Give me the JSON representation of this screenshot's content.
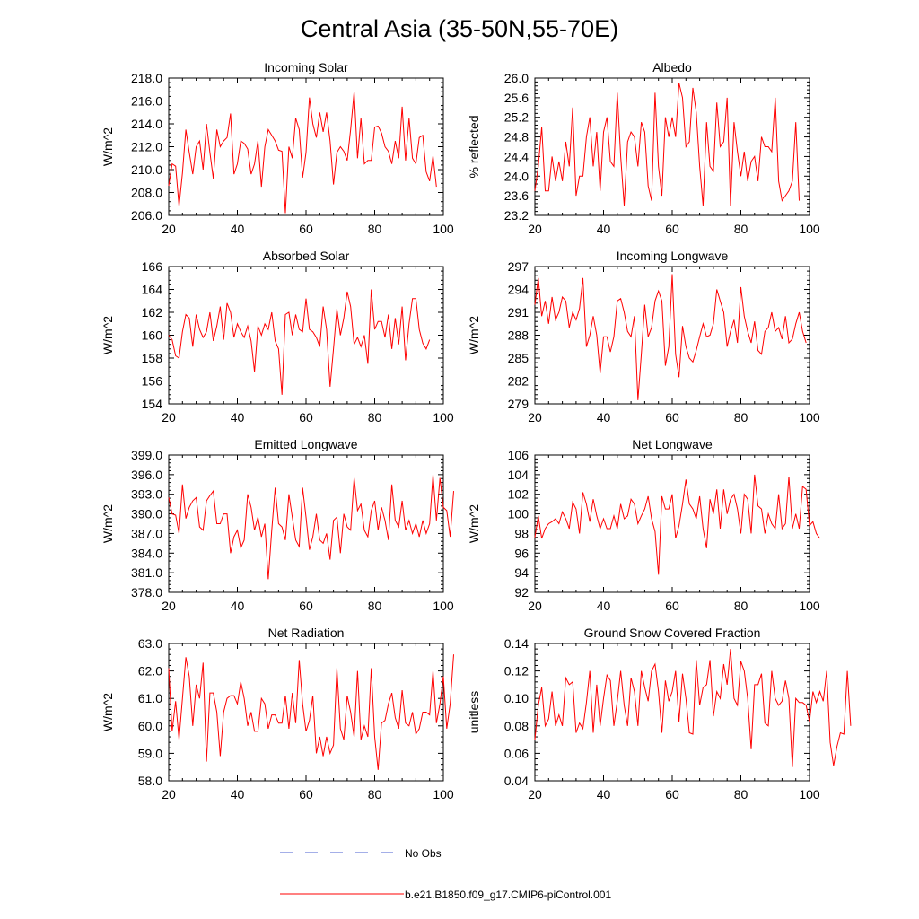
{
  "figure_title": "Central Asia (35-50N,55-70E)",
  "colors": {
    "model_line": "#ff0000",
    "obs_line": "#4a5fd0",
    "axis": "#000000"
  },
  "legend": {
    "obs_label": "No Obs",
    "model_label": "b.e21.B1850.f09_g17.CMIP6-piControl.001"
  },
  "chart_data": [
    {
      "type": "line",
      "title": "Incoming Solar",
      "xlabel": "",
      "ylabel": "W/m^2",
      "xlim": [
        20,
        100
      ],
      "ylim": [
        206.0,
        218.0
      ],
      "xticks": [
        "20",
        "40",
        "60",
        "80",
        "100"
      ],
      "yticks": [
        "206.0",
        "208.0",
        "210.0",
        "212.0",
        "214.0",
        "216.0",
        "218.0"
      ],
      "series": [
        {
          "name": "b.e21.B1850.f09_g17.CMIP6-piControl.001",
          "x0": 20,
          "values": [
            208.6,
            210.5,
            210.3,
            206.8,
            209.7,
            213.5,
            211.5,
            209.6,
            212.0,
            212.5,
            210.0,
            214.0,
            211.5,
            209.2,
            213.5,
            212.0,
            212.5,
            212.8,
            214.9,
            209.6,
            210.5,
            212.5,
            212.3,
            211.8,
            209.6,
            210.5,
            212.5,
            208.5,
            212.0,
            213.5,
            213.0,
            212.5,
            211.7,
            211.6,
            206.2,
            212.0,
            211.0,
            214.5,
            213.5,
            209.3,
            211.5,
            216.3,
            214.0,
            212.8,
            215.0,
            213.3,
            215.0,
            212.5,
            208.7,
            211.5,
            212.0,
            211.6,
            210.8,
            213.5,
            216.8,
            211.0,
            214.5,
            210.5,
            210.8,
            210.8,
            213.7,
            213.8,
            213.2,
            212.0,
            211.6,
            210.5,
            212.5,
            211.0,
            215.5,
            210.8,
            214.5,
            211.0,
            210.5,
            212.8,
            213.0,
            209.8,
            209.0,
            211.2,
            208.5
          ]
        }
      ]
    },
    {
      "type": "line",
      "title": "Albedo",
      "xlabel": "",
      "ylabel": "% reflected",
      "xlim": [
        20,
        100
      ],
      "ylim": [
        23.2,
        26.0
      ],
      "xticks": [
        "20",
        "40",
        "60",
        "80",
        "100"
      ],
      "yticks": [
        "23.2",
        "23.6",
        "24.0",
        "24.4",
        "24.8",
        "25.2",
        "25.6",
        "26.0"
      ],
      "series": [
        {
          "name": "b.e21.B1850.f09_g17.CMIP6-piControl.001",
          "x0": 20,
          "values": [
            23.7,
            24.2,
            25.0,
            23.7,
            23.7,
            24.4,
            23.9,
            24.3,
            23.9,
            24.7,
            24.2,
            25.4,
            23.6,
            24.0,
            24.0,
            24.8,
            25.2,
            24.2,
            24.9,
            23.7,
            24.9,
            25.2,
            24.3,
            24.2,
            25.7,
            24.4,
            23.4,
            24.7,
            24.9,
            24.8,
            24.2,
            25.1,
            24.9,
            23.8,
            23.5,
            25.7,
            24.2,
            23.6,
            25.2,
            24.8,
            25.2,
            24.8,
            25.9,
            25.6,
            24.6,
            24.7,
            25.8,
            25.3,
            24.2,
            23.4,
            25.1,
            24.2,
            24.1,
            25.5,
            24.6,
            24.7,
            25.6,
            23.4,
            25.1,
            24.5,
            24.0,
            24.5,
            23.9,
            24.3,
            24.4,
            23.9,
            24.8,
            24.6,
            24.6,
            24.5,
            25.6,
            23.9,
            23.5,
            23.6,
            23.7,
            23.9,
            25.1,
            23.5
          ]
        }
      ]
    },
    {
      "type": "line",
      "title": "Absorbed Solar",
      "xlabel": "",
      "ylabel": "W/m^2",
      "xlim": [
        20,
        100
      ],
      "ylim": [
        154,
        166
      ],
      "xticks": [
        "20",
        "40",
        "60",
        "80",
        "100"
      ],
      "yticks": [
        "154",
        "156",
        "158",
        "160",
        "162",
        "164",
        "166"
      ],
      "series": [
        {
          "name": "b.e21.B1850.f09_g17.CMIP6-piControl.001",
          "x0": 20,
          "values": [
            160.0,
            159.6,
            158.2,
            158.0,
            160.3,
            161.8,
            161.5,
            159.0,
            161.8,
            160.5,
            159.8,
            160.3,
            162.0,
            159.5,
            160.8,
            162.5,
            159.6,
            162.8,
            162.0,
            159.8,
            161.0,
            160.3,
            159.8,
            160.8,
            159.5,
            156.8,
            160.8,
            160.0,
            161.0,
            160.5,
            162.0,
            159.5,
            158.8,
            154.8,
            161.8,
            162.0,
            160.0,
            161.8,
            160.5,
            160.3,
            163.2,
            160.5,
            160.3,
            159.8,
            159.0,
            162.5,
            160.5,
            155.5,
            158.8,
            162.3,
            160.0,
            161.5,
            163.8,
            162.5,
            159.2,
            159.8,
            159.0,
            160.0,
            157.5,
            164.0,
            160.5,
            161.2,
            161.2,
            159.8,
            161.8,
            158.8,
            161.5,
            159.2,
            162.5,
            157.8,
            161.0,
            163.2,
            163.2,
            160.5,
            159.3,
            158.8,
            159.6
          ]
        }
      ]
    },
    {
      "type": "line",
      "title": "Incoming Longwave",
      "xlabel": "",
      "ylabel": "W/m^2",
      "xlim": [
        20,
        100
      ],
      "ylim": [
        279,
        297
      ],
      "xticks": [
        "20",
        "40",
        "60",
        "80",
        "100"
      ],
      "yticks": [
        "279",
        "282",
        "285",
        "288",
        "291",
        "294",
        "297"
      ],
      "series": [
        {
          "name": "b.e21.B1850.f09_g17.CMIP6-piControl.001",
          "x0": 20,
          "values": [
            292.0,
            295.5,
            290.5,
            292.5,
            289.5,
            293.0,
            290.0,
            291.0,
            293.0,
            292.5,
            289.0,
            291.0,
            290.0,
            291.5,
            295.5,
            286.5,
            288.0,
            290.5,
            288.0,
            283.0,
            287.8,
            287.8,
            285.8,
            287.8,
            292.5,
            292.8,
            291.0,
            288.5,
            287.8,
            290.5,
            279.5,
            285.5,
            292.0,
            287.8,
            289.0,
            292.5,
            293.8,
            292.5,
            284.0,
            286.5,
            296.0,
            285.5,
            282.5,
            289.2,
            286.5,
            285.0,
            284.5,
            286.0,
            287.8,
            289.5,
            287.8,
            288.0,
            289.5,
            294.0,
            292.5,
            291.0,
            286.5,
            288.5,
            290.0,
            287.0,
            294.3,
            290.5,
            288.5,
            287.0,
            289.8,
            286.0,
            285.5,
            288.5,
            289.0,
            291.0,
            288.5,
            289.0,
            287.5,
            290.5,
            287.0,
            287.5,
            289.5,
            291.0,
            288.5,
            287.0
          ]
        }
      ]
    },
    {
      "type": "line",
      "title": "Emitted Longwave",
      "xlabel": "",
      "ylabel": "W/m^2",
      "xlim": [
        20,
        100
      ],
      "ylim": [
        378.0,
        399.0
      ],
      "xticks": [
        "20",
        "40",
        "60",
        "80",
        "100"
      ],
      "yticks": [
        "378.0",
        "381.0",
        "384.0",
        "387.0",
        "390.0",
        "393.0",
        "396.0",
        "399.0"
      ],
      "series": [
        {
          "name": "b.e21.B1850.f09_g17.CMIP6-piControl.001",
          "x0": 20,
          "values": [
            392.5,
            390.0,
            389.8,
            387.0,
            394.5,
            389.3,
            391.0,
            392.0,
            392.5,
            388.0,
            387.5,
            392.0,
            392.8,
            393.5,
            388.5,
            388.5,
            390.0,
            390.0,
            384.0,
            386.5,
            387.5,
            384.8,
            386.0,
            393.0,
            391.0,
            387.5,
            389.5,
            386.5,
            388.5,
            380.0,
            387.5,
            394.0,
            388.5,
            388.0,
            386.0,
            393.0,
            389.5,
            386.0,
            385.0,
            394.0,
            389.5,
            384.5,
            386.5,
            390.0,
            386.0,
            385.5,
            387.0,
            383.0,
            389.0,
            389.5,
            384.0,
            390.0,
            388.0,
            387.5,
            395.5,
            390.5,
            391.5,
            387.5,
            386.5,
            390.5,
            392.0,
            387.5,
            391.0,
            389.0,
            386.0,
            394.5,
            389.0,
            388.0,
            392.0,
            387.5,
            389.0,
            387.0,
            388.5,
            386.5,
            389.0,
            387.0,
            388.5,
            396.0,
            389.0,
            395.5,
            391.0,
            390.5,
            386.5,
            393.5
          ]
        }
      ]
    },
    {
      "type": "line",
      "title": "Net Longwave",
      "xlabel": "",
      "ylabel": "W/m^2",
      "xlim": [
        20,
        100
      ],
      "ylim": [
        92,
        106
      ],
      "xticks": [
        "20",
        "40",
        "60",
        "80",
        "100"
      ],
      "yticks": [
        "92",
        "94",
        "96",
        "98",
        "100",
        "102",
        "104",
        "106"
      ],
      "series": [
        {
          "name": "b.e21.B1850.f09_g17.CMIP6-piControl.001",
          "x0": 20,
          "values": [
            97.6,
            99.8,
            97.5,
            98.5,
            99.0,
            99.2,
            99.5,
            99.0,
            100.2,
            99.5,
            98.5,
            101.2,
            100.5,
            98.0,
            102.2,
            101.0,
            99.2,
            101.5,
            99.8,
            98.5,
            99.5,
            98.5,
            98.5,
            99.8,
            98.5,
            101.0,
            99.5,
            99.8,
            101.5,
            101.0,
            99.0,
            99.8,
            100.5,
            101.8,
            99.5,
            98.2,
            93.8,
            101.8,
            100.5,
            100.5,
            102.0,
            97.5,
            98.8,
            101.0,
            103.5,
            101.0,
            100.5,
            99.5,
            101.8,
            98.5,
            96.5,
            101.5,
            100.0,
            102.5,
            98.5,
            102.5,
            100.0,
            101.5,
            102.0,
            100.5,
            98.0,
            102.0,
            101.5,
            98.0,
            104.0,
            100.8,
            100.5,
            98.0,
            100.0,
            99.0,
            98.5,
            102.0,
            98.5,
            99.0,
            103.8,
            98.5,
            100.0,
            98.5,
            102.8,
            102.5,
            98.8,
            99.2,
            98.0,
            97.5
          ]
        }
      ]
    },
    {
      "type": "line",
      "title": "Net Radiation",
      "xlabel": "",
      "ylabel": "W/m^2",
      "xlim": [
        20,
        100
      ],
      "ylim": [
        58.0,
        63.0
      ],
      "xticks": [
        "20",
        "40",
        "60",
        "80",
        "100"
      ],
      "yticks": [
        "58.0",
        "59.0",
        "60.0",
        "61.0",
        "62.0",
        "63.0"
      ],
      "series": [
        {
          "name": "b.e21.B1850.f09_g17.CMIP6-piControl.001",
          "x0": 20,
          "values": [
            62.1,
            59.8,
            60.9,
            59.5,
            61.0,
            62.5,
            61.8,
            60.0,
            61.5,
            61.0,
            62.3,
            58.7,
            61.2,
            61.2,
            60.5,
            58.9,
            60.5,
            61.0,
            61.1,
            61.1,
            60.8,
            61.6,
            61.0,
            60.0,
            60.5,
            59.8,
            59.8,
            61.0,
            60.8,
            59.9,
            60.4,
            60.4,
            60.1,
            60.1,
            61.1,
            59.9,
            61.2,
            60.1,
            62.4,
            60.8,
            59.8,
            60.2,
            61.1,
            59.0,
            59.6,
            58.9,
            59.6,
            59.0,
            59.3,
            62.1,
            59.9,
            59.5,
            61.1,
            60.5,
            59.6,
            62.0,
            59.5,
            60.0,
            59.6,
            62.1,
            59.6,
            58.4,
            60.1,
            60.2,
            60.8,
            61.2,
            60.3,
            59.9,
            61.3,
            60.1,
            60.0,
            60.5,
            59.7,
            59.9,
            60.5,
            60.5,
            60.4,
            62.0,
            60.1,
            60.8,
            61.8,
            59.9,
            60.8,
            62.6
          ]
        }
      ]
    },
    {
      "type": "line",
      "title": "Ground Snow Covered Fraction",
      "xlabel": "",
      "ylabel": "unitless",
      "xlim": [
        20,
        100
      ],
      "ylim": [
        0.04,
        0.14
      ],
      "xticks": [
        "20",
        "40",
        "60",
        "80",
        "100"
      ],
      "yticks": [
        "0.04",
        "0.06",
        "0.08",
        "0.10",
        "0.12",
        "0.14"
      ],
      "series": [
        {
          "name": "b.e21.B1850.f09_g17.CMIP6-piControl.001",
          "x0": 20,
          "values": [
            0.07,
            0.095,
            0.108,
            0.08,
            0.085,
            0.105,
            0.08,
            0.088,
            0.08,
            0.115,
            0.11,
            0.112,
            0.075,
            0.082,
            0.078,
            0.097,
            0.12,
            0.075,
            0.11,
            0.08,
            0.1,
            0.117,
            0.113,
            0.08,
            0.098,
            0.12,
            0.095,
            0.08,
            0.115,
            0.105,
            0.08,
            0.12,
            0.108,
            0.098,
            0.12,
            0.125,
            0.105,
            0.075,
            0.113,
            0.098,
            0.105,
            0.12,
            0.083,
            0.118,
            0.1,
            0.075,
            0.074,
            0.128,
            0.095,
            0.108,
            0.11,
            0.128,
            0.087,
            0.105,
            0.1,
            0.125,
            0.11,
            0.136,
            0.1,
            0.095,
            0.127,
            0.12,
            0.1,
            0.063,
            0.11,
            0.11,
            0.118,
            0.082,
            0.08,
            0.12,
            0.1,
            0.095,
            0.098,
            0.113,
            0.1,
            0.05,
            0.1,
            0.097,
            0.097,
            0.095,
            0.083,
            0.105,
            0.097,
            0.105,
            0.098,
            0.12,
            0.068,
            0.051,
            0.065,
            0.075,
            0.074,
            0.12,
            0.08
          ]
        }
      ]
    }
  ]
}
